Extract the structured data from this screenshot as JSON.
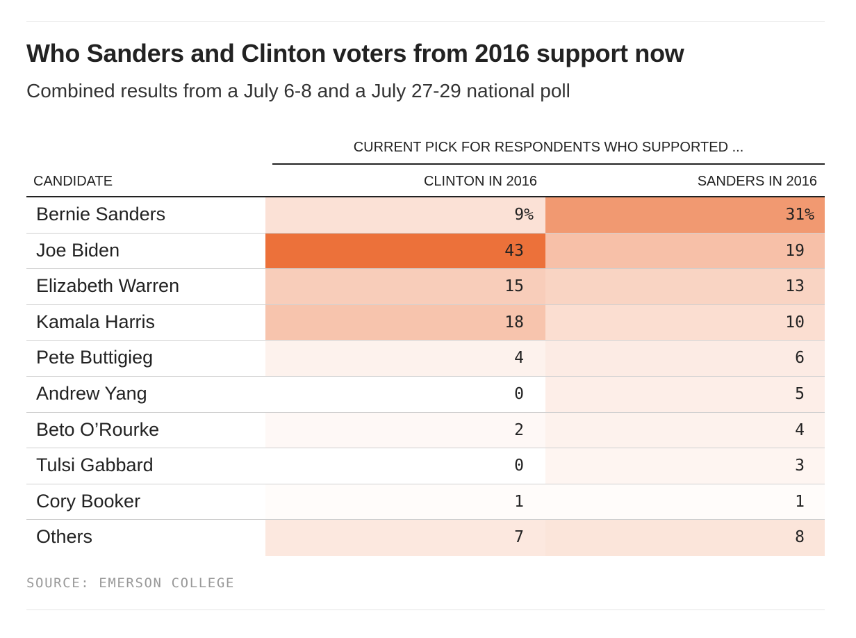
{
  "chart_data": {
    "type": "table",
    "title": "Who Sanders and Clinton voters from 2016 support now",
    "subtitle": "Combined results from a July 6-8 and a July 27-29 national poll",
    "group_header": "CURRENT PICK FOR RESPONDENTS WHO SUPPORTED ...",
    "columns": [
      "CANDIDATE",
      "CLINTON IN 2016",
      "SANDERS IN 2016"
    ],
    "rows": [
      {
        "candidate": "Bernie Sanders",
        "clinton": 9,
        "sanders": 31,
        "clinton_label": "9%",
        "sanders_label": "31%"
      },
      {
        "candidate": "Joe Biden",
        "clinton": 43,
        "sanders": 19,
        "clinton_label": "43",
        "sanders_label": "19"
      },
      {
        "candidate": "Elizabeth Warren",
        "clinton": 15,
        "sanders": 13,
        "clinton_label": "15",
        "sanders_label": "13"
      },
      {
        "candidate": "Kamala Harris",
        "clinton": 18,
        "sanders": 10,
        "clinton_label": "18",
        "sanders_label": "10"
      },
      {
        "candidate": "Pete Buttigieg",
        "clinton": 4,
        "sanders": 6,
        "clinton_label": "4",
        "sanders_label": "6"
      },
      {
        "candidate": "Andrew Yang",
        "clinton": 0,
        "sanders": 5,
        "clinton_label": "0",
        "sanders_label": "5"
      },
      {
        "candidate": "Beto O’Rourke",
        "clinton": 2,
        "sanders": 4,
        "clinton_label": "2",
        "sanders_label": "4"
      },
      {
        "candidate": "Tulsi Gabbard",
        "clinton": 0,
        "sanders": 3,
        "clinton_label": "0",
        "sanders_label": "3"
      },
      {
        "candidate": "Cory Booker",
        "clinton": 1,
        "sanders": 1,
        "clinton_label": "1",
        "sanders_label": "1"
      },
      {
        "candidate": "Others",
        "clinton": 7,
        "sanders": 8,
        "clinton_label": "7",
        "sanders_label": "8"
      }
    ],
    "heat_color": "#ec713a",
    "source": "SOURCE: EMERSON COLLEGE"
  }
}
